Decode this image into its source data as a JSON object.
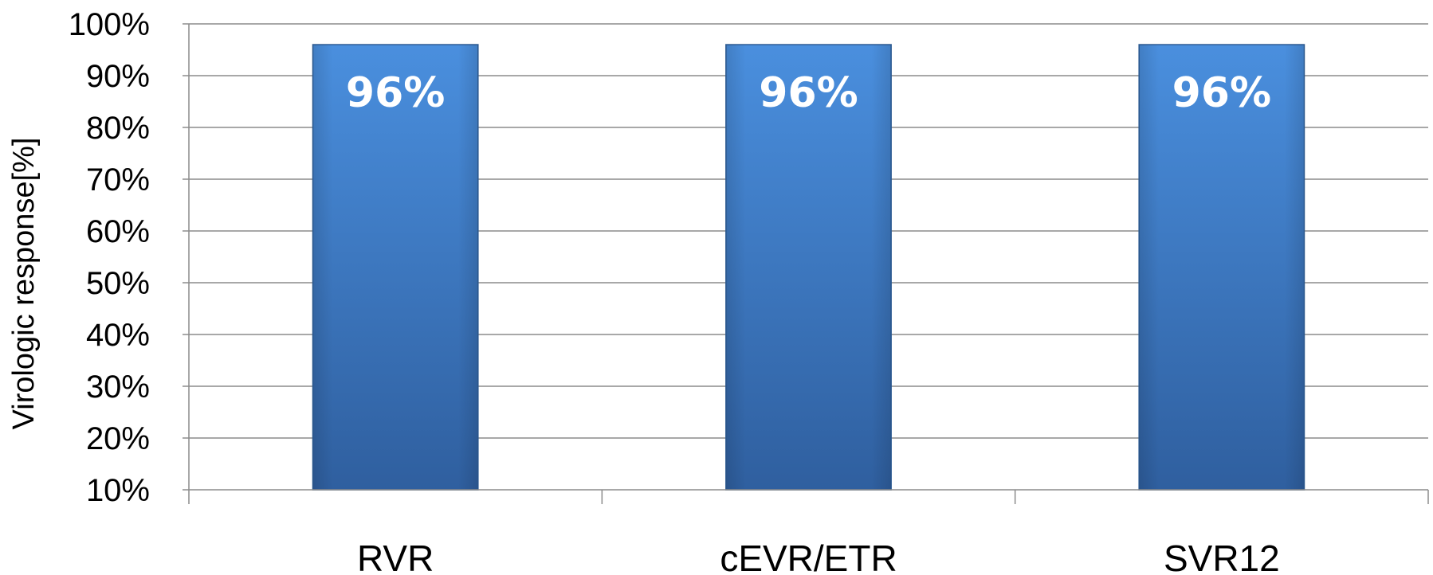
{
  "chart_data": {
    "type": "bar",
    "title": "",
    "xlabel": "",
    "ylabel": "Virologic response[%]",
    "categories": [
      "RVR",
      "cEVR/ETR",
      "SVR12"
    ],
    "values": [
      96,
      96,
      96
    ],
    "data_labels": [
      "96%",
      "96%",
      "96%"
    ],
    "ylim": [
      10,
      100
    ],
    "yticks": [
      10,
      20,
      30,
      40,
      50,
      60,
      70,
      80,
      90,
      100
    ],
    "ytick_labels": [
      "10%",
      "20%",
      "30%",
      "40%",
      "50%",
      "60%",
      "70%",
      "80%",
      "90%",
      "100%"
    ],
    "grid": true,
    "legend": "none",
    "colors": {
      "bar_top": "#4a8fde",
      "bar_bottom": "#2f5f9f",
      "bar_edge": "#2e5d95",
      "grid": "#8c8c8c",
      "axis": "#8c8c8c"
    }
  }
}
